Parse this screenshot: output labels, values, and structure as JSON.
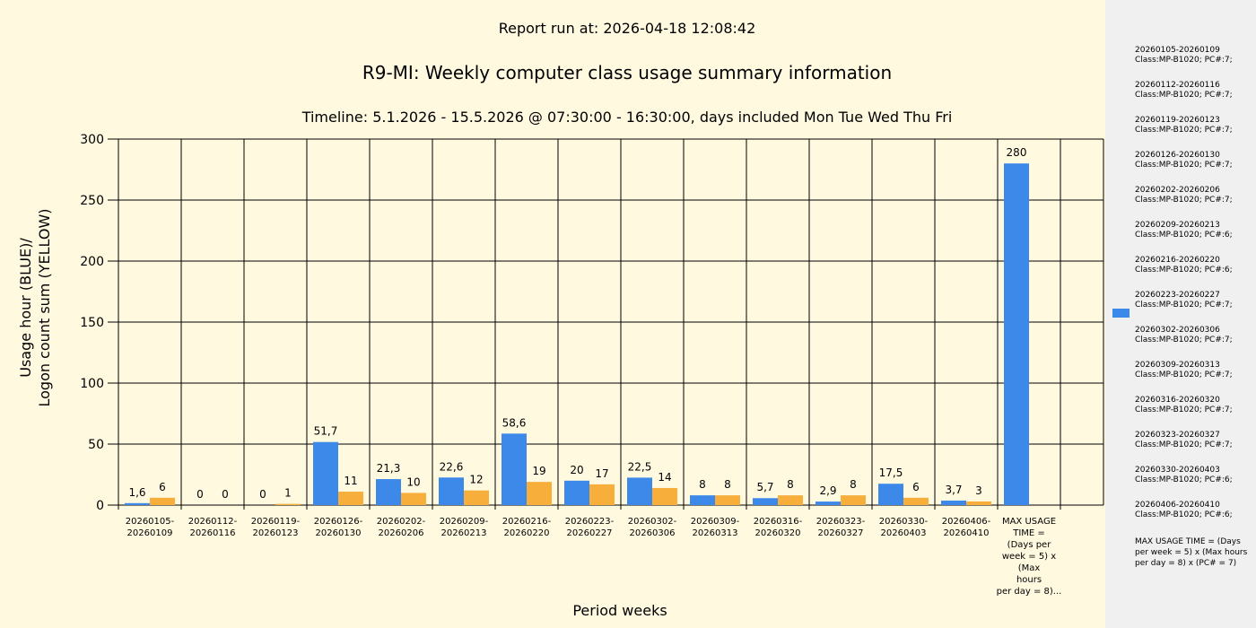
{
  "report_run": "Report run at: 2026-04-18 12:08:42",
  "chart_data": {
    "type": "bar",
    "title": "R9-MI: Weekly computer class usage summary information",
    "subtitle": "Timeline:  5.1.2026  - 15.5.2026  @  07:30:00 -  16:30:00, days included Mon Tue Wed Thu Fri",
    "xlabel": "Period weeks",
    "ylabel_line1": "Usage hour (BLUE)/",
    "ylabel_line2": "Logon count sum (YELLOW)",
    "ylim": [
      0,
      300
    ],
    "yticks": [
      "0",
      "50",
      "100",
      "150",
      "200",
      "250",
      "300"
    ],
    "grid": true,
    "categories": [
      "20260105-\n20260109",
      "20260112-\n20260116",
      "20260119-\n20260123",
      "20260126-\n20260130",
      "20260202-\n20260206",
      "20260209-\n20260213",
      "20260216-\n20260220",
      "20260223-\n20260227",
      "20260302-\n20260306",
      "20260309-\n20260313",
      "20260316-\n20260320",
      "20260323-\n20260327",
      "20260330-\n20260403",
      "20260406-\n20260410",
      "MAX USAGE\nTIME =\n(Days per\nweek = 5) x\n(Max\nhours\nper day = 8)..."
    ],
    "series": [
      {
        "color": "#3d89ea",
        "values": [
          1.6,
          0,
          0,
          51.7,
          21.3,
          22.6,
          58.6,
          20,
          22.5,
          8,
          5.7,
          2.9,
          17.5,
          3.7,
          280
        ],
        "labels": [
          "1,6",
          "0",
          "0",
          "51,7",
          "21,3",
          "22,6",
          "58,6",
          "20",
          "22,5",
          "8",
          "5,7",
          "2,9",
          "17,5",
          "3,7",
          "280"
        ]
      },
      {
        "color": "#f7ae3a",
        "values": [
          6,
          0,
          1,
          11,
          10,
          12,
          19,
          17,
          14,
          8,
          8,
          8,
          6,
          3,
          null
        ],
        "labels": [
          "6",
          "0",
          "1",
          "11",
          "10",
          "12",
          "19",
          "17",
          "14",
          "8",
          "8",
          "8",
          "6",
          "3",
          ""
        ]
      }
    ],
    "legend": {
      "placement": "right",
      "swatch_color": "#3d89ea",
      "entries": [
        "20260105-20260109\nClass:MP-B1020; PC#:7;",
        "20260112-20260116\nClass:MP-B1020; PC#:7;",
        "20260119-20260123\nClass:MP-B1020; PC#:7;",
        "20260126-20260130\nClass:MP-B1020; PC#:7;",
        "20260202-20260206\nClass:MP-B1020; PC#:7;",
        "20260209-20260213\nClass:MP-B1020; PC#:6;",
        "20260216-20260220\nClass:MP-B1020; PC#:6;",
        "20260223-20260227\nClass:MP-B1020; PC#:7;",
        "20260302-20260306\nClass:MP-B1020; PC#:7;",
        "20260309-20260313\nClass:MP-B1020; PC#:7;",
        "20260316-20260320\nClass:MP-B1020; PC#:7;",
        "20260323-20260327\nClass:MP-B1020; PC#:7;",
        "20260330-20260403\nClass:MP-B1020; PC#:6;",
        "20260406-20260410\nClass:MP-B1020; PC#:6;"
      ],
      "note": "MAX USAGE TIME = (Days per week = 5) x (Max hours per day = 8) x (PC# = 7)"
    }
  }
}
